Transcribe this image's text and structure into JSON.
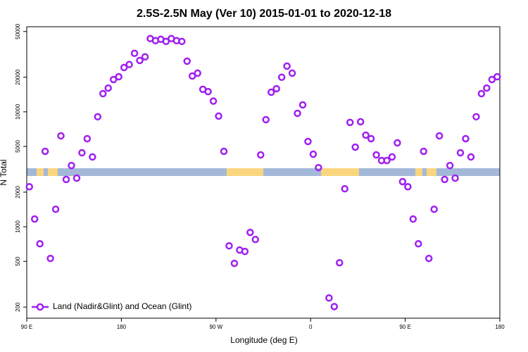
{
  "chart_data": {
    "type": "scatter",
    "title": "2.5S-2.5N May (Ver 10)   2015-01-01 to 2020-12-18",
    "xlabel": "Longitude (deg E)",
    "ylabel": "N Total",
    "xlim": [
      90,
      540
    ],
    "xticks": [
      {
        "value": 90,
        "label": "90 E"
      },
      {
        "value": 180,
        "label": "180"
      },
      {
        "value": 270,
        "label": "90 W"
      },
      {
        "value": 360,
        "label": "0"
      },
      {
        "value": 450,
        "label": "90 E"
      },
      {
        "value": 540,
        "label": "180"
      }
    ],
    "ylim": [
      160,
      55000
    ],
    "yscale": "log",
    "yticks": [
      200,
      500,
      1000,
      2000,
      5000,
      10000,
      20000,
      50000
    ],
    "legend": "lower left",
    "series": [
      {
        "name": "Land (Nadir&Glint) and Ocean (Glint)",
        "color": "#a020f0",
        "x": [
          92.5,
          97.5,
          102.5,
          107.5,
          112.5,
          117.5,
          122.5,
          127.5,
          132.5,
          137.5,
          142.5,
          147.5,
          152.5,
          157.5,
          162.5,
          167.5,
          172.5,
          177.5,
          182.5,
          187.5,
          192.5,
          197.5,
          202.5,
          207.5,
          212.5,
          217.5,
          222.5,
          227.5,
          232.5,
          237.5,
          242.5,
          247.5,
          252.5,
          257.5,
          262.5,
          267.5,
          272.5,
          277.5,
          282.5,
          287.5,
          292.5,
          297.5,
          302.5,
          307.5,
          312.5,
          317.5,
          322.5,
          327.5,
          332.5,
          337.5,
          342.5,
          347.5,
          352.5,
          357.5,
          362.5,
          367.5,
          377.5,
          382.5,
          387.5,
          392.5,
          397.5,
          402.5,
          407.5,
          412.5,
          417.5,
          422.5,
          427.5,
          432.5,
          437.5,
          442.5,
          447.5,
          452.5,
          457.5,
          462.5,
          467.5,
          472.5,
          477.5,
          482.5,
          487.5,
          492.5,
          497.5,
          502.5,
          507.5,
          512.5,
          517.5,
          522.5,
          527.5,
          532.5,
          537.5
        ],
        "values": [
          2230,
          1167,
          711,
          4530,
          530,
          1420,
          6180,
          2580,
          3410,
          2650,
          4400,
          5840,
          4050,
          9060,
          14400,
          16100,
          19100,
          20200,
          24300,
          25800,
          32300,
          28000,
          30100,
          43400,
          41600,
          42800,
          41000,
          43400,
          41600,
          41000,
          27600,
          20500,
          21700,
          15700,
          15000,
          12400,
          9180,
          4530,
          682,
          480,
          627,
          610,
          893,
          775,
          4220,
          8550,
          14800,
          15900,
          20000,
          25000,
          21700,
          9710,
          11500,
          5520,
          4280,
          3270,
          240,
          202,
          486,
          2140,
          8090,
          4930,
          8200,
          6270,
          5840,
          4220,
          3770,
          3770,
          4050,
          5370,
          2470,
          2230,
          1167,
          711,
          4530,
          530,
          1420,
          6180,
          2580,
          3410,
          2650,
          4400,
          5840,
          4050,
          9060,
          14400,
          16100,
          19100,
          20200
        ]
      }
    ]
  }
}
